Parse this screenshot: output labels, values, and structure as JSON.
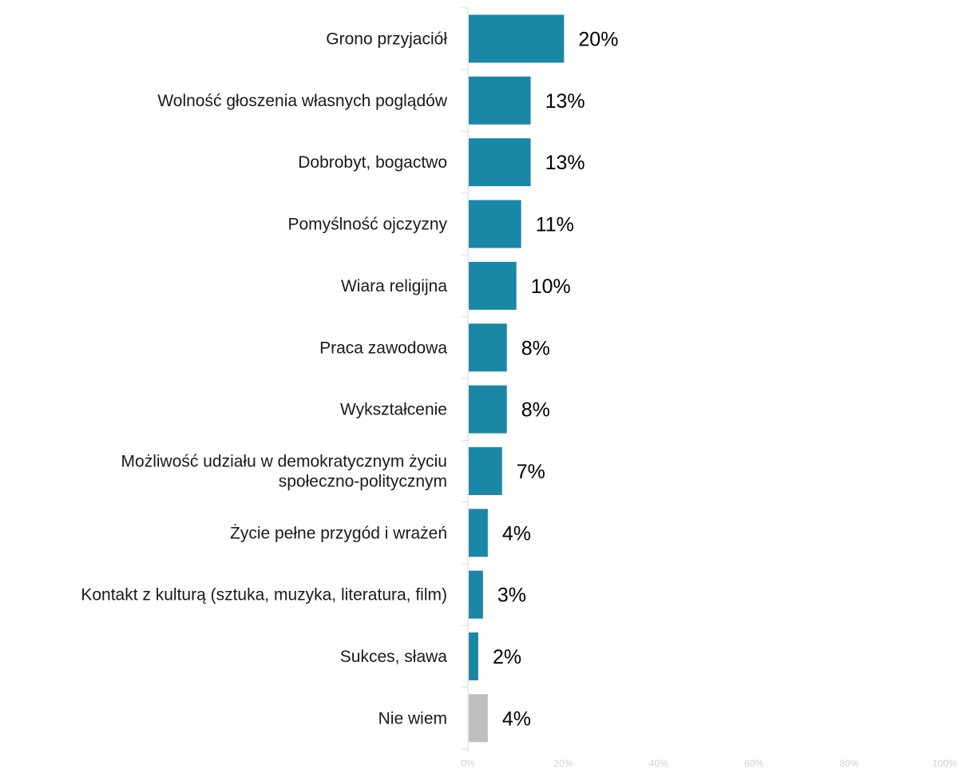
{
  "chart_data": {
    "type": "bar",
    "orientation": "horizontal",
    "categories": [
      [
        "Grono przyjaciół"
      ],
      [
        "Wolność głoszenia własnych poglądów"
      ],
      [
        "Dobrobyt, bogactwo"
      ],
      [
        "Pomyślność ojczyzny"
      ],
      [
        "Wiara religijna"
      ],
      [
        "Praca zawodowa"
      ],
      [
        "Wykształcenie"
      ],
      [
        "Możliwość udziału w demokratycznym życiu",
        "społeczno-politycznym"
      ],
      [
        "Życie pełne przygód i wrażeń"
      ],
      [
        "Kontakt z kulturą (sztuka, muzyka, literatura, film)"
      ],
      [
        "Sukces, sława"
      ],
      [
        "Nie wiem"
      ]
    ],
    "values": [
      20,
      13,
      13,
      11,
      10,
      8,
      8,
      7,
      4,
      3,
      2,
      4
    ],
    "value_labels": [
      "20%",
      "13%",
      "13%",
      "11%",
      "10%",
      "8%",
      "8%",
      "7%",
      "4%",
      "3%",
      "2%",
      "4%"
    ],
    "bar_colors": [
      "#1b87a6",
      "#1b87a6",
      "#1b87a6",
      "#1b87a6",
      "#1b87a6",
      "#1b87a6",
      "#1b87a6",
      "#1b87a6",
      "#1b87a6",
      "#1b87a6",
      "#1b87a6",
      "#bfbfbf"
    ],
    "xlim": [
      0,
      100
    ],
    "x_ticks": [
      0,
      20,
      40,
      60,
      80,
      100
    ],
    "x_tick_labels": [
      "0%",
      "20%",
      "40%",
      "60%",
      "80%",
      "100%"
    ],
    "title": "",
    "xlabel": "",
    "ylabel": "",
    "grid": false,
    "legend": "none",
    "colors": {
      "axis": "#d9d9d9",
      "tick_label": "#d0d0d0",
      "category_label": "#1a1a1a",
      "value_label": "#000000"
    }
  }
}
